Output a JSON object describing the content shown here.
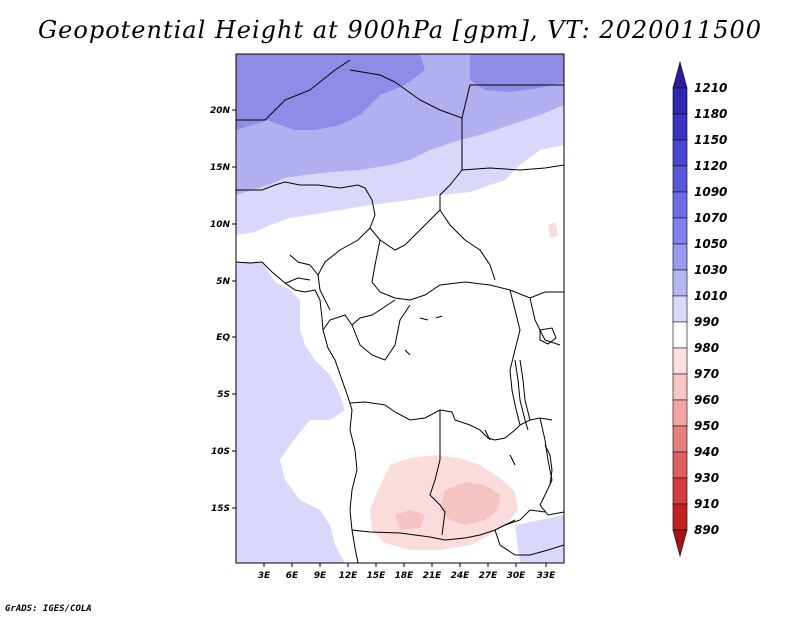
{
  "title": "Geopotential Height at 900hPa [gpm], VT: 2020011500",
  "credit": "GrADS: IGES/COLA",
  "map": {
    "lat_ticks": [
      "20N",
      "15N",
      "10N",
      "5N",
      "EQ",
      "5S",
      "10S",
      "15S"
    ],
    "lon_ticks": [
      "3E",
      "6E",
      "9E",
      "12E",
      "15E",
      "18E",
      "21E",
      "24E",
      "27E",
      "30E",
      "33E"
    ]
  },
  "colorbar": {
    "levels": [
      "1210",
      "1180",
      "1150",
      "1120",
      "1090",
      "1070",
      "1050",
      "1030",
      "1010",
      "990",
      "980",
      "970",
      "960",
      "950",
      "940",
      "930",
      "910",
      "890"
    ],
    "colors": [
      "#2a1c9c",
      "#2f27ae",
      "#3a34c0",
      "#4a46cf",
      "#5a58db",
      "#6e6ce4",
      "#8280ea",
      "#9a98ef",
      "#b6b5f4",
      "#dad9fb",
      "#ffffff",
      "#fde0e0",
      "#f9c4c4",
      "#f3a4a4",
      "#e98080",
      "#df5e5e",
      "#d23c3c",
      "#c02222",
      "#a81212"
    ]
  },
  "colors": {
    "deep_purple": "#8f8be6",
    "mid_purple": "#b1aff0",
    "light_purple": "#d9d8fa",
    "pink": "#fbdcdc",
    "pink_dark": "#f6c3c3"
  }
}
